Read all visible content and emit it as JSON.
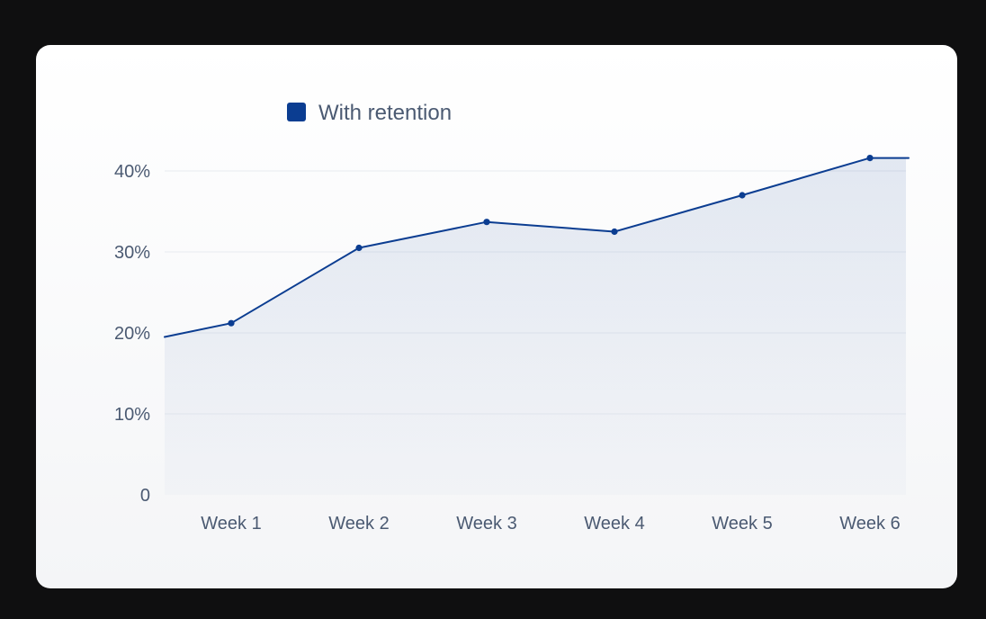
{
  "colors": {
    "series": "#0b3d91",
    "grid": "#e8ebf0",
    "tick_text": "#4b5a72",
    "card_bg": "#ffffff",
    "page_bg": "#0f0f10"
  },
  "legend": {
    "label": "With retention"
  },
  "chart_data": {
    "type": "area",
    "categories": [
      "Week 1",
      "Week 2",
      "Week 3",
      "Week 4",
      "Week 5",
      "Week 6"
    ],
    "x_tick_labels": [
      "Week 1",
      "Week 2",
      "Week 3",
      "Week 4",
      "Week 5",
      "Week 6"
    ],
    "y_tick_labels": [
      "0",
      "10%",
      "20%",
      "30%",
      "40%"
    ],
    "y_ticks": [
      0,
      10,
      20,
      30,
      40
    ],
    "ylim": [
      0,
      40
    ],
    "grid": true,
    "legend_position": "top-left",
    "series": [
      {
        "name": "With retention",
        "values": [
          21.2,
          30.5,
          33.7,
          32.5,
          37.0,
          41.6
        ],
        "start_value": 19.5,
        "end_value": 41.6
      }
    ]
  }
}
